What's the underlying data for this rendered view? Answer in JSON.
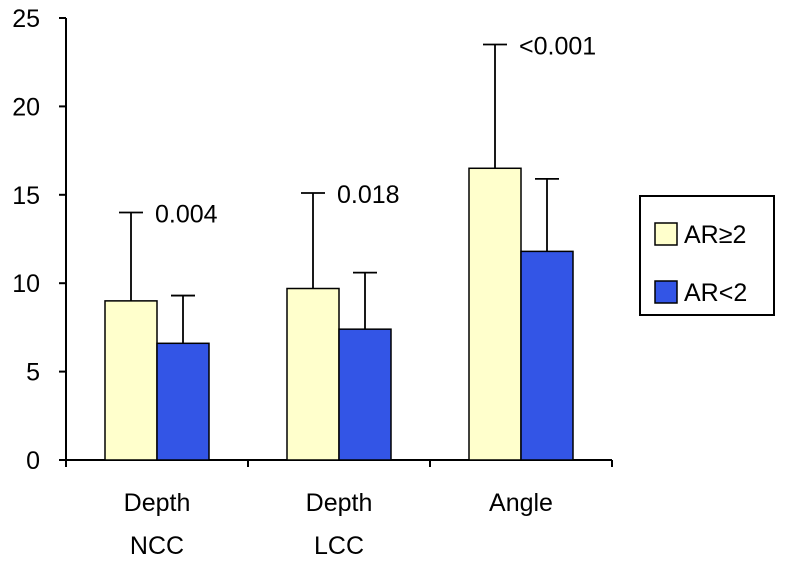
{
  "chart_data": {
    "type": "bar",
    "categories": [
      [
        "Depth",
        "NCC"
      ],
      [
        "Depth",
        "LCC"
      ],
      [
        "Angle"
      ]
    ],
    "series": [
      {
        "name": "AR≥2",
        "color": "#ffffcc",
        "values": [
          9.0,
          9.7,
          16.5
        ],
        "error": [
          5.0,
          5.4,
          7.0
        ]
      },
      {
        "name": "AR<2",
        "color": "#3355e6",
        "values": [
          6.6,
          7.4,
          11.8
        ],
        "error": [
          2.7,
          3.2,
          4.1
        ]
      }
    ],
    "p_values": [
      "0.004",
      "0.018",
      "<0.001"
    ],
    "ylim": [
      0,
      25
    ],
    "yticks": [
      0,
      5,
      10,
      15,
      20,
      25
    ],
    "title": "",
    "xlabel": "",
    "ylabel": "",
    "legend_position": "right",
    "grid": false
  },
  "legend": {
    "items": [
      {
        "label": "AR≥2",
        "color": "#ffffcc"
      },
      {
        "label": "AR<2",
        "color": "#3355e6"
      }
    ]
  }
}
